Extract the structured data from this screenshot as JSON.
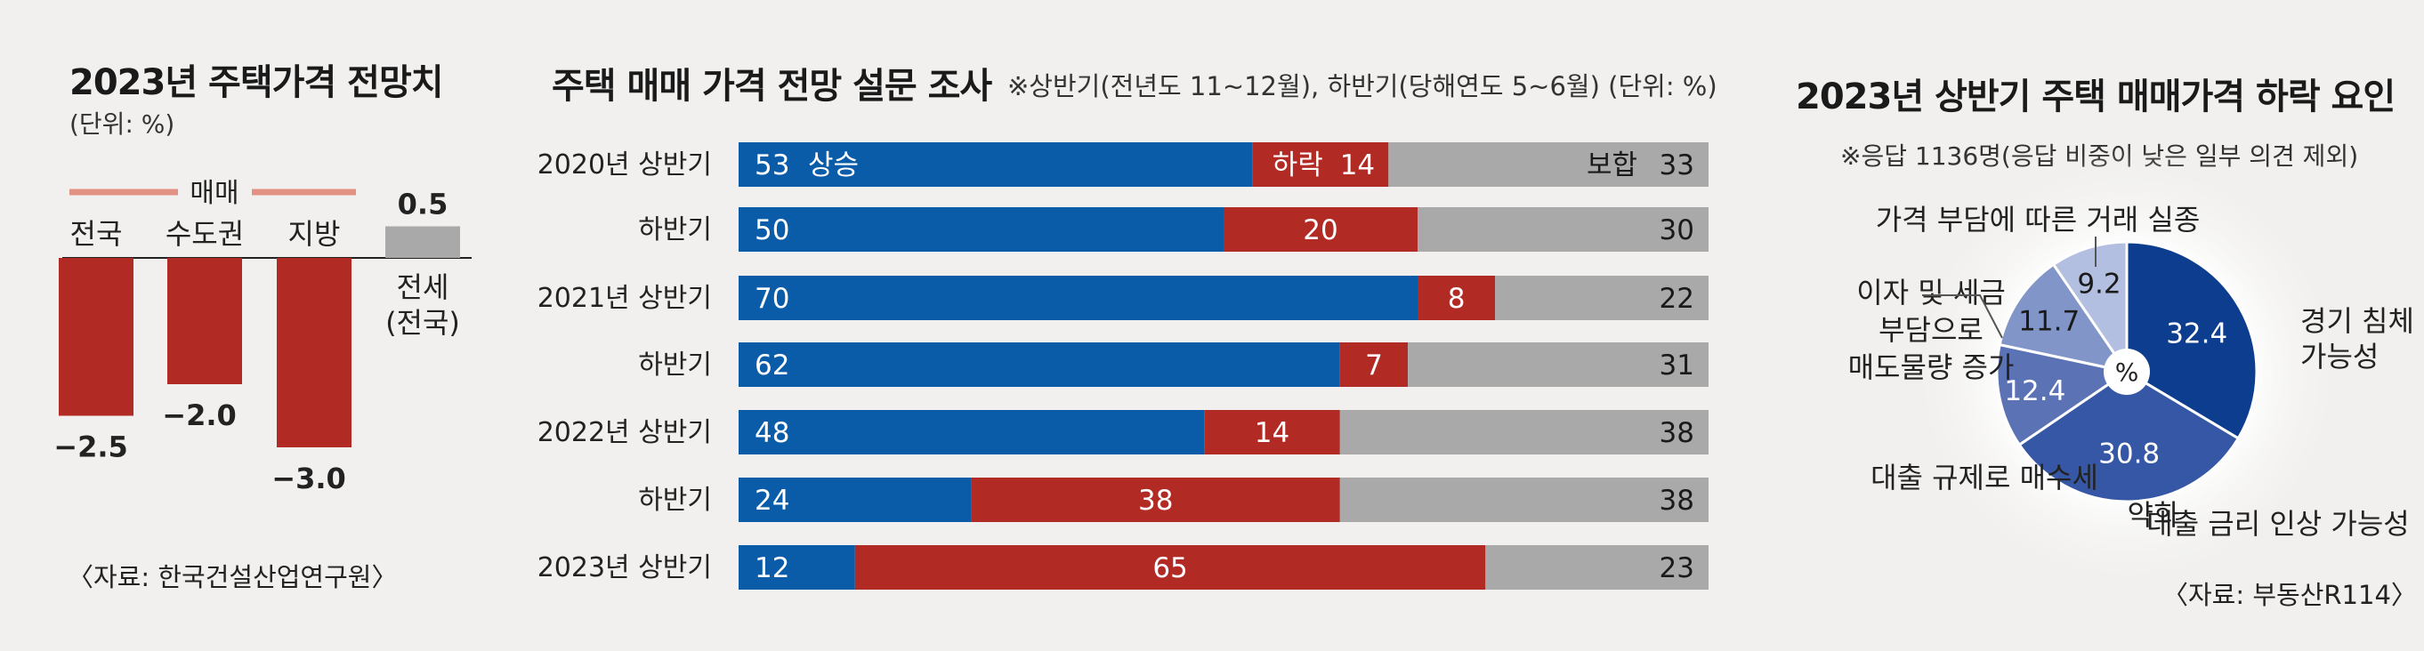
{
  "colors": {
    "red": "#b22a24",
    "blue": "#0a5ca8",
    "gray": "#a9a9a9",
    "pink": "#e39183",
    "pie": [
      "#0c3d8f",
      "#3557a6",
      "#5b73b4",
      "#8295c8",
      "#b3bfe0"
    ]
  },
  "chart_data": [
    {
      "type": "bar",
      "title": "2023년 주택가격 전망치",
      "unit": "(단위: %)",
      "group_label": "매매",
      "categories": [
        "전국",
        "수도권",
        "지방",
        "전세\n(전국)"
      ],
      "category_lines": [
        [
          "전국"
        ],
        [
          "수도권"
        ],
        [
          "지방"
        ],
        [
          "전세",
          "(전국)"
        ]
      ],
      "values": [
        -2.5,
        -2.0,
        -3.0,
        0.5
      ],
      "value_labels": [
        "−2.5",
        "−2.0",
        "−3.0",
        "0.5"
      ],
      "bar_colors": [
        "red",
        "red",
        "red",
        "gray"
      ],
      "source": "〈자료: 한국건설산업연구원〉"
    },
    {
      "type": "bar",
      "stacked": true,
      "orientation": "horizontal",
      "title": "주택 매매 가격 전망 설문 조사",
      "note": "※상반기(전년도 11~12월), 하반기(당해연도 5~6월) (단위: %)",
      "categories": [
        "2020년 상반기",
        "하반기",
        "2021년 상반기",
        "하반기",
        "2022년 상반기",
        "하반기",
        "2023년 상반기"
      ],
      "series": [
        {
          "name": "상승",
          "color": "blue",
          "values": [
            53,
            50,
            70,
            62,
            48,
            24,
            12
          ]
        },
        {
          "name": "하락",
          "color": "red",
          "values": [
            14,
            20,
            8,
            7,
            14,
            38,
            65
          ]
        },
        {
          "name": "보합",
          "color": "gray",
          "values": [
            33,
            30,
            22,
            31,
            38,
            38,
            23
          ]
        }
      ]
    },
    {
      "type": "pie",
      "title": "2023년 상반기 주택 매매가격 하락 요인",
      "note": "※응답 1136명(응답 비중이 낮은 일부 의견 제외)",
      "center_label": "%",
      "slices": [
        {
          "label": "경기 침체 가능성",
          "lines": [
            "경기 침체",
            "가능성"
          ],
          "value": 32.4,
          "value_label": "32.4"
        },
        {
          "label": "대출 금리 인상 가능성",
          "lines": [
            "대출 금리 인상 가능성"
          ],
          "value": 30.8,
          "value_label": "30.8"
        },
        {
          "label": "대출 규제로 매수세 약화",
          "lines": [
            "대출 규제로 매수세",
            "약화"
          ],
          "value": 12.4,
          "value_label": "12.4"
        },
        {
          "label": "이자 및 세금 부담으로 매도물량 증가",
          "lines": [
            "이자 및 세금",
            "부담으로",
            "매도물량 증가"
          ],
          "value": 11.7,
          "value_label": "11.7"
        },
        {
          "label": "가격 부담에 따른 거래 실종",
          "lines": [
            "가격 부담에 따른 거래 실종"
          ],
          "value": 9.2,
          "value_label": "9.2"
        }
      ],
      "source": "〈자료: 부동산R114〉"
    }
  ]
}
